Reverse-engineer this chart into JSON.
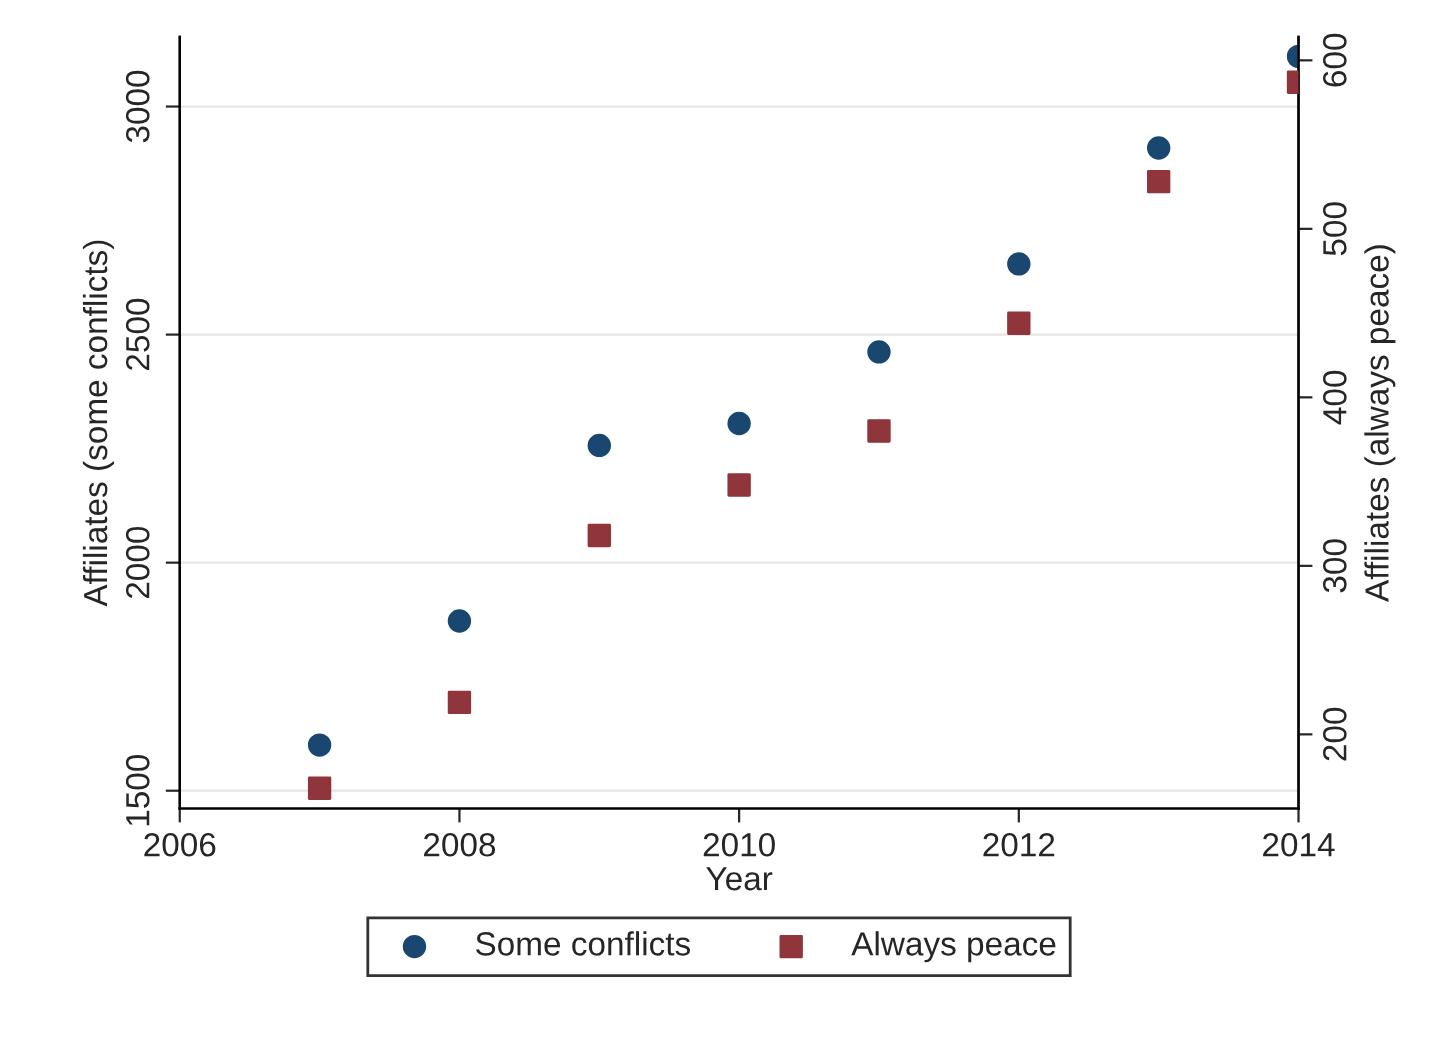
{
  "chart_data": {
    "type": "scatter",
    "xlabel": "Year",
    "ylabel": "Affiliates (some conflicts)",
    "y2label": "Affiliates (always peace)",
    "x": [
      2007,
      2008,
      2009,
      2010,
      2011,
      2012,
      2013,
      2014
    ],
    "series": [
      {
        "name": "Some conflicts",
        "color": "#1a476f",
        "marker": "circle",
        "values": [
          1600,
          1872,
          2257,
          2305,
          2462,
          2655,
          2909,
          3110
        ]
      },
      {
        "name": "Always peace",
        "color": "#90353b",
        "marker": "square",
        "axis": "y2",
        "values": [
          168,
          219,
          318,
          348,
          380,
          444,
          528,
          587
        ]
      }
    ],
    "xlim": [
      2006,
      2014
    ],
    "xticks": [
      2006,
      2008,
      2010,
      2012,
      2014
    ],
    "ylim": [
      1461,
      3153
    ],
    "yticks": [
      1500,
      2000,
      2500,
      3000
    ],
    "y2lim": [
      156,
      614
    ],
    "y2ticks": [
      200,
      300,
      400,
      500,
      600
    ],
    "grid": "y",
    "legend": "bottom"
  }
}
